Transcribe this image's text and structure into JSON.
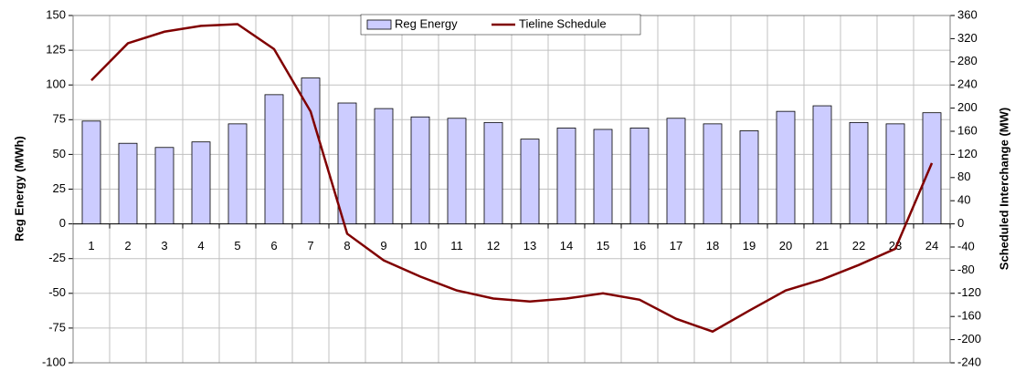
{
  "chart_data": {
    "type": "bar-line",
    "categories": [
      "1",
      "2",
      "3",
      "4",
      "5",
      "6",
      "7",
      "8",
      "9",
      "10",
      "11",
      "12",
      "13",
      "14",
      "15",
      "16",
      "17",
      "18",
      "19",
      "20",
      "21",
      "22",
      "23",
      "24"
    ],
    "y_label": "Reg Energy (MWh)",
    "y2_label": "Scheduled Interchange (MW)",
    "series": [
      {
        "name": "Reg Energy",
        "type": "bar",
        "color": "#ccccff",
        "values": [
          74,
          58,
          55,
          59,
          72,
          93,
          105,
          87,
          83,
          77,
          76,
          73,
          61,
          69,
          68,
          69,
          76,
          72,
          67,
          81,
          85,
          73,
          72,
          80
        ]
      },
      {
        "name": "Tieline Schedule",
        "type": "line",
        "axis": "y2",
        "color": "#800000",
        "values": [
          248,
          312,
          332,
          342,
          345,
          302,
          194,
          -17,
          -63,
          -91,
          -115,
          -129,
          -134,
          -129,
          -120,
          -131,
          -164,
          -186,
          -150,
          -115,
          -96,
          -71,
          -43,
          105
        ]
      }
    ],
    "ylim": [
      -100,
      150
    ],
    "yticks": [
      -100,
      -75,
      -50,
      -25,
      0,
      25,
      50,
      75,
      100,
      125,
      150
    ],
    "y2lim": [
      -240,
      360
    ],
    "y2ticks": [
      -240,
      -200,
      -160,
      -120,
      -80,
      -40,
      0,
      40,
      80,
      120,
      160,
      200,
      240,
      280,
      320,
      360
    ],
    "grid": true,
    "legend": "top"
  }
}
